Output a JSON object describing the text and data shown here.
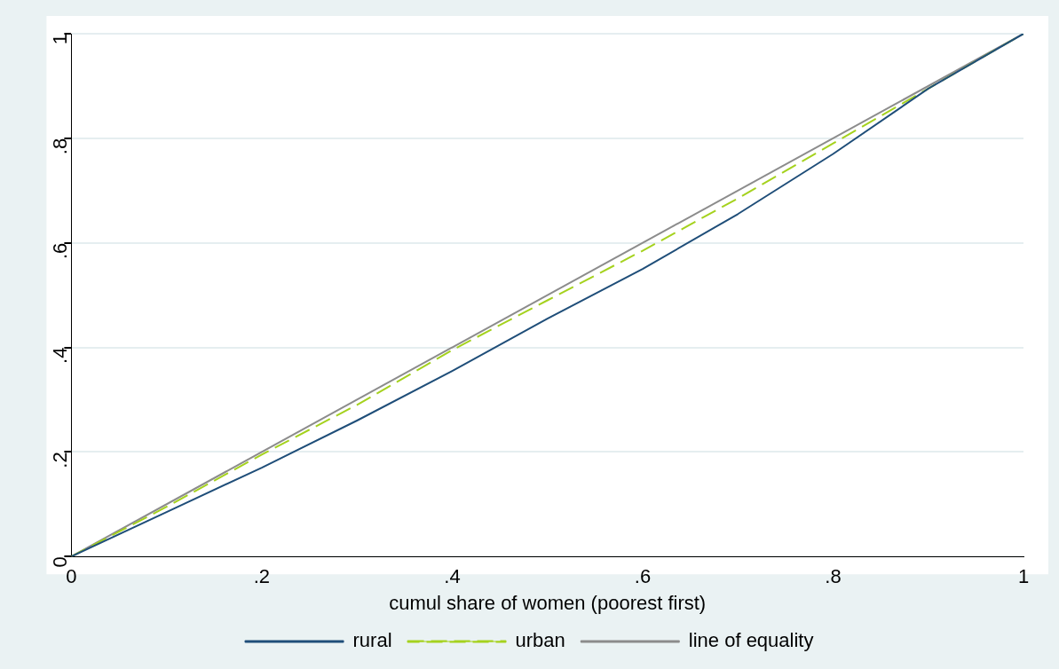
{
  "chart_data": {
    "type": "line",
    "xlabel": "cumul share of women (poorest first)",
    "x": [
      0,
      0.1,
      0.2,
      0.3,
      0.4,
      0.5,
      0.6,
      0.7,
      0.8,
      0.9,
      1
    ],
    "series": [
      {
        "name": "rural",
        "color": "#1f4e79",
        "line_style": "solid",
        "values": [
          0,
          0.085,
          0.17,
          0.26,
          0.355,
          0.455,
          0.55,
          0.655,
          0.77,
          0.895,
          1
        ]
      },
      {
        "name": "urban",
        "color": "#a5d21e",
        "line_style": "dashed",
        "values": [
          0,
          0.095,
          0.195,
          0.29,
          0.395,
          0.49,
          0.585,
          0.685,
          0.79,
          0.895,
          1
        ]
      },
      {
        "name": "line of equality",
        "color": "#8c8c8c",
        "line_style": "solid",
        "x": [
          0,
          1
        ],
        "values": [
          0,
          1
        ]
      }
    ],
    "xlim": [
      0,
      1
    ],
    "ylim": [
      0,
      1
    ],
    "xticks": [
      0,
      {
        "value": 0.2,
        "label": ".2"
      },
      {
        "value": 0.4,
        "label": ".4"
      },
      {
        "value": 0.6,
        "label": ".6"
      },
      {
        "value": 0.8,
        "label": ".8"
      },
      1
    ],
    "yticks": [
      0,
      {
        "value": 0.2,
        "label": ".2"
      },
      {
        "value": 0.4,
        "label": ".4"
      },
      {
        "value": 0.6,
        "label": ".6"
      },
      {
        "value": 0.8,
        "label": ".8"
      },
      1
    ],
    "grid": "y",
    "legend": "bottom",
    "marker": "none"
  }
}
